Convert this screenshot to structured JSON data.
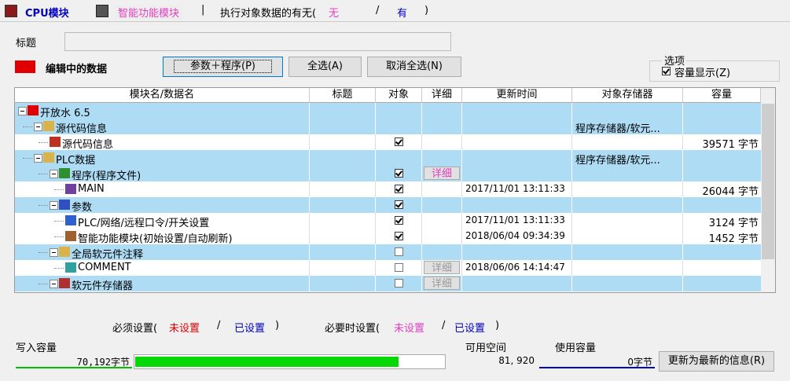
{
  "tabs": {
    "cpu_module": "CPU模块",
    "intelligent_module": "智能功能模块",
    "separator": "|"
  },
  "execution_status": {
    "label": "执行对象数据的有无(",
    "none": "无",
    "slash": "/",
    "present": "有",
    "close": ")"
  },
  "title_field": {
    "label": "标题",
    "value": ""
  },
  "editing": {
    "label": "编辑中的数据",
    "buttons": [
      "参数＋程序(P)",
      "全选(A)",
      "取消全选(N)"
    ]
  },
  "options": {
    "legend": "选项",
    "capacity_display": "容量显示(Z)",
    "capacity_display_checked": true
  },
  "table": {
    "columns": [
      "模块名/数据名",
      "标题",
      "对象",
      "详细",
      "更新时间",
      "对象存储器",
      "容量"
    ],
    "rows": [
      {
        "name": "开放水 6.5",
        "level": 0,
        "highlighted": true,
        "checked": null,
        "detail": null,
        "time": null,
        "memory": null,
        "capacity": null
      },
      {
        "name": "源代码信息",
        "level": 1,
        "highlighted": true,
        "checked": null,
        "detail": null,
        "time": null,
        "memory": "程序存储器/软元...",
        "capacity": null
      },
      {
        "name": "源代码信息",
        "level": 2,
        "highlighted": false,
        "checked": true,
        "detail": null,
        "time": null,
        "memory": null,
        "capacity": "39571 字节"
      },
      {
        "name": "PLC数据",
        "level": 1,
        "highlighted": true,
        "checked": null,
        "detail": null,
        "time": null,
        "memory": "程序存储器/软元...",
        "capacity": null
      },
      {
        "name": "程序(程序文件)",
        "level": 2,
        "highlighted": true,
        "checked": true,
        "detail": "详细",
        "detail_enabled": true,
        "time": null,
        "memory": null,
        "capacity": null
      },
      {
        "name": "MAIN",
        "level": 3,
        "highlighted": false,
        "checked": true,
        "detail": null,
        "time": "2017/11/01 13:11:33",
        "memory": null,
        "capacity": "26044 字节"
      },
      {
        "name": "参数",
        "level": 2,
        "highlighted": true,
        "checked": true,
        "detail": null,
        "time": null,
        "memory": null,
        "capacity": null
      },
      {
        "name": "PLC/网络/远程口令/开关设置",
        "level": 3,
        "highlighted": false,
        "checked": true,
        "detail": null,
        "time": "2017/11/01 13:11:33",
        "memory": null,
        "capacity": "3124 字节"
      },
      {
        "name": "智能功能模块(初始设置/自动刷新)",
        "level": 3,
        "highlighted": false,
        "checked": true,
        "detail": null,
        "time": "2018/06/04 09:34:39",
        "memory": null,
        "capacity": "1452 字节"
      },
      {
        "name": "全局软元件注释",
        "level": 2,
        "highlighted": true,
        "checked": false,
        "detail": null,
        "time": null,
        "memory": null,
        "capacity": null
      },
      {
        "name": "COMMENT",
        "level": 3,
        "highlighted": false,
        "checked": false,
        "detail": "详细",
        "detail_enabled": false,
        "time": "2018/06/06 14:14:47",
        "memory": null,
        "capacity": null
      },
      {
        "name": "软元件存储器",
        "level": 2,
        "highlighted": true,
        "checked": false,
        "detail": "详细",
        "detail_enabled": false,
        "time": null,
        "memory": null,
        "capacity": null
      }
    ]
  },
  "legend": {
    "required": "必须设置(",
    "required_unset": "未设置",
    "required_slash": "/",
    "required_set": "已设置",
    "required_close": ")",
    "optional": "必要时设置(",
    "optional_unset": "未设置",
    "optional_slash": "/",
    "optional_set": "已设置",
    "optional_close": ")"
  },
  "capacity": {
    "write_label": "写入容量",
    "write_capacity": {
      "value": 70192,
      "label": "70,192字节"
    },
    "free_label": "可用空间",
    "free_space": {
      "value": 81920,
      "label": "81, 920"
    },
    "used_label": "使用容量",
    "used_capacity": {
      "value": 0,
      "label": "0字节"
    },
    "refresh_button": "更新为最新的信息(R)"
  }
}
